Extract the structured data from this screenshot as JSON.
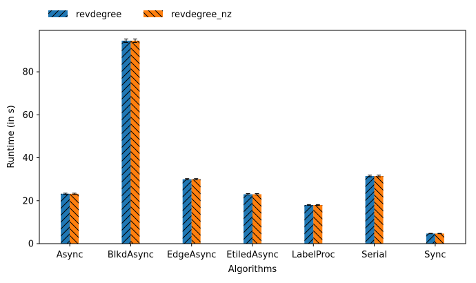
{
  "chart_data": {
    "type": "bar",
    "categories": [
      "Async",
      "BlkdAsync",
      "EdgeAsync",
      "EtiledAsync",
      "LabelProc",
      "Serial",
      "Sync"
    ],
    "series": [
      {
        "name": "revdegree",
        "values": [
          23.2,
          94.5,
          30.0,
          23.0,
          18.0,
          31.5,
          4.7
        ],
        "color": "#1f77b4",
        "hatch": "forward-diagonal"
      },
      {
        "name": "revdegree_nz",
        "values": [
          23.2,
          94.5,
          30.0,
          23.0,
          18.0,
          31.5,
          4.7
        ],
        "color": "#ff7f0e",
        "hatch": "back-diagonal"
      }
    ],
    "error_bars": [
      0.3,
      0.8,
      0.3,
      0.3,
      0.2,
      0.4,
      0.1
    ],
    "xlabel": "Algorithms",
    "ylabel": "Runtime (in s)",
    "ylim": [
      0,
      99.3
    ],
    "yticks": [
      0,
      20,
      40,
      60,
      80
    ],
    "grid": false,
    "legend_position": "top-left, above plot"
  }
}
